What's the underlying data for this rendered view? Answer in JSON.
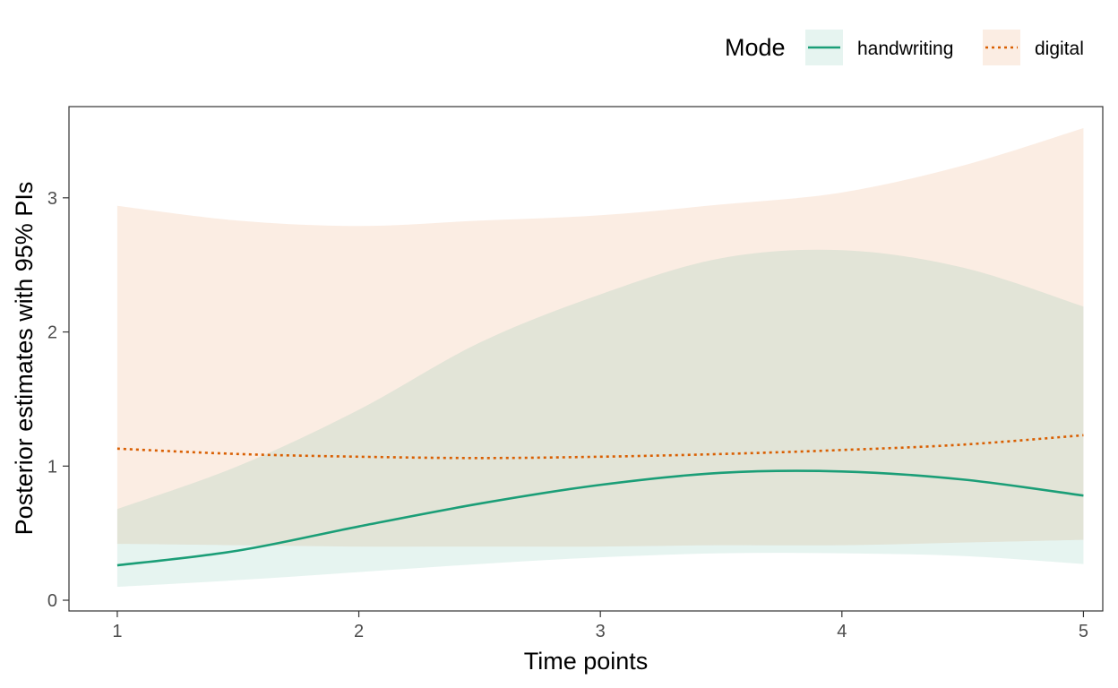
{
  "chart_data": {
    "type": "line",
    "title": "",
    "xlabel": "Time points",
    "ylabel": "Posterior estimates with 95% PIs",
    "xlim": [
      0.8,
      5.08
    ],
    "ylim": [
      -0.08,
      3.68
    ],
    "x_ticks": [
      1,
      2,
      3,
      4,
      5
    ],
    "y_ticks": [
      0,
      1,
      2,
      3
    ],
    "grid": false,
    "legend": {
      "title": "Mode",
      "placement": "top-right",
      "entries": [
        "handwriting",
        "digital"
      ]
    },
    "series": [
      {
        "name": "handwriting",
        "color": "#1b9e77",
        "line_style": "solid",
        "x": [
          1.0,
          1.5,
          2.0,
          2.5,
          3.0,
          3.5,
          4.0,
          4.5,
          5.0
        ],
        "y": [
          0.26,
          0.37,
          0.55,
          0.72,
          0.86,
          0.95,
          0.96,
          0.9,
          0.78
        ],
        "lower": [
          0.1,
          0.15,
          0.21,
          0.27,
          0.32,
          0.35,
          0.35,
          0.33,
          0.27
        ],
        "upper": [
          0.68,
          1.0,
          1.42,
          1.92,
          2.28,
          2.55,
          2.61,
          2.48,
          2.19
        ]
      },
      {
        "name": "digital",
        "color": "#d95f02",
        "line_style": "dotted",
        "x": [
          1.0,
          1.5,
          2.0,
          2.5,
          3.0,
          3.5,
          4.0,
          4.5,
          5.0
        ],
        "y": [
          1.13,
          1.09,
          1.07,
          1.06,
          1.07,
          1.09,
          1.12,
          1.16,
          1.23
        ],
        "lower": [
          0.42,
          0.41,
          0.4,
          0.4,
          0.4,
          0.41,
          0.41,
          0.43,
          0.45
        ],
        "upper": [
          2.94,
          2.83,
          2.79,
          2.83,
          2.87,
          2.95,
          3.04,
          3.24,
          3.52
        ]
      }
    ]
  }
}
